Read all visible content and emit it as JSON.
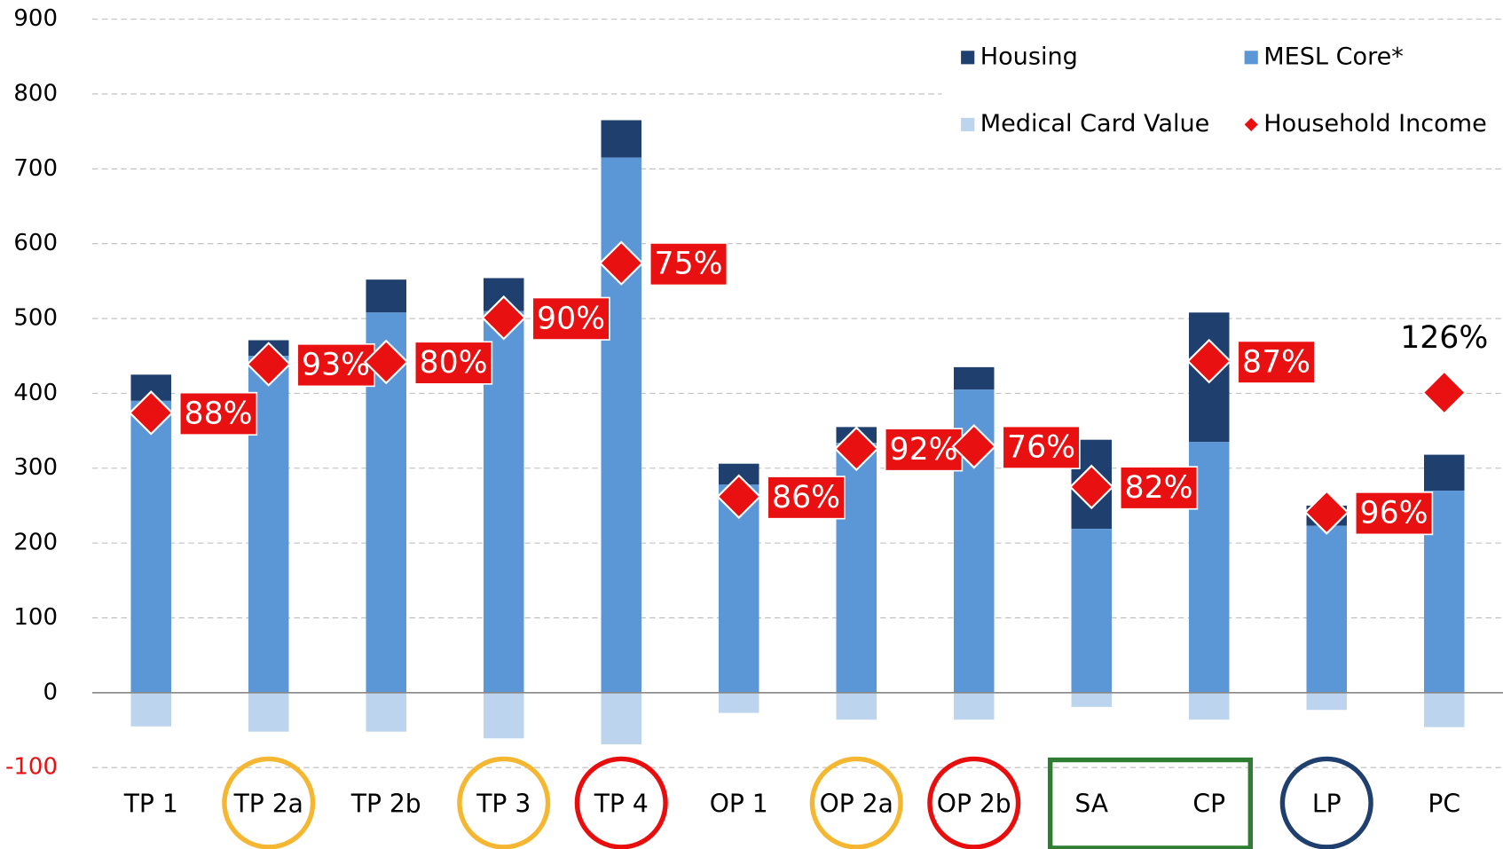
{
  "chart_data": {
    "type": "stacked_bar_with_markers",
    "categories": [
      "TP 1",
      "TP 2a",
      "TP 2b",
      "TP 3",
      "TP 4",
      "OP 1",
      "OP 2a",
      "OP 2b",
      "SA",
      "CP",
      "LP",
      "PC"
    ],
    "series": [
      {
        "name": "Housing",
        "color": "#1f3f6e",
        "stack": "up",
        "values": [
          35,
          21,
          44,
          44,
          50,
          28,
          21,
          30,
          119,
          173,
          27,
          48
        ]
      },
      {
        "name": "MESL Core*",
        "color": "#5b96d6",
        "stack": "base",
        "values": [
          390,
          450,
          508,
          510,
          715,
          278,
          334,
          405,
          219,
          335,
          223,
          270
        ]
      },
      {
        "name": "Medical Card Value",
        "color": "#bdd4ee",
        "stack": "down",
        "values": [
          -45,
          -52,
          -52,
          -61,
          -69,
          -27,
          -36,
          -36,
          -19,
          -36,
          -23,
          -46
        ]
      },
      {
        "name": "Household Income",
        "color": "#e81010",
        "marker": "diamond",
        "values": [
          374,
          439,
          442,
          501,
          574,
          262,
          326,
          329,
          275,
          443,
          241,
          401
        ],
        "point_labels": [
          "88%",
          "93%",
          "80%",
          "90%",
          "75%",
          "86%",
          "92%",
          "76%",
          "82%",
          "87%",
          "96%",
          "126%"
        ],
        "label_boxed": [
          true,
          true,
          true,
          true,
          true,
          true,
          true,
          true,
          true,
          true,
          true,
          false
        ]
      }
    ],
    "ylim": [
      -100,
      900
    ],
    "yticks": [
      -100,
      0,
      100,
      200,
      300,
      400,
      500,
      600,
      700,
      800,
      900
    ],
    "negative_tick_color": "#e81010",
    "grid": true,
    "legend": "top-right",
    "highlights": [
      {
        "shape": "circle",
        "color": "#f5b731",
        "indices": [
          1,
          3,
          6
        ]
      },
      {
        "shape": "circle",
        "color": "#e80e0e",
        "indices": [
          4,
          7
        ]
      },
      {
        "shape": "box",
        "color": "#2e7d32",
        "indices": [
          8,
          9
        ]
      },
      {
        "shape": "circle",
        "color": "#1f3f6e",
        "indices": [
          10
        ]
      }
    ]
  }
}
